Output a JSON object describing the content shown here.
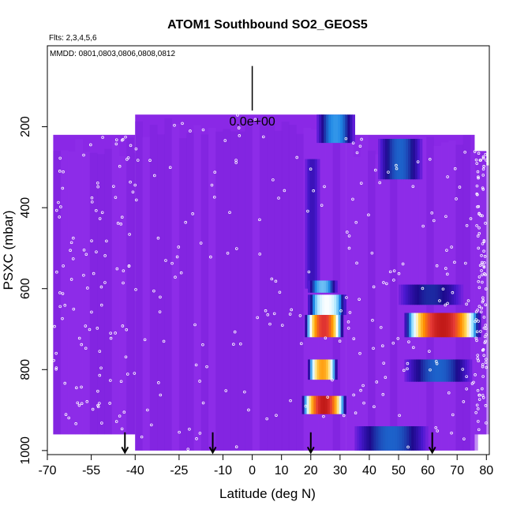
{
  "chart_data": {
    "type": "heatmap",
    "title": "ATOM1 Southbound SO2_GEOS5",
    "subtitle_flights": "Flts: 2,3,4,5,6",
    "subtitle_dates": "MMDD: 0801,0803,0806,0808,0812",
    "xlabel": "Latitude (deg N)",
    "ylabel": "PSXC (mbar)",
    "xlim": [
      -70,
      81
    ],
    "ylim": [
      1010,
      0
    ],
    "x_ticks": [
      -70,
      -55,
      -40,
      -25,
      -10,
      0,
      10,
      20,
      30,
      40,
      50,
      60,
      70,
      80
    ],
    "y_ticks": [
      200,
      400,
      600,
      800,
      1000
    ],
    "scale_key_label": "0.0e+00",
    "scale_key_pressure_range": [
      50,
      160
    ],
    "scale_key_latitude": 0,
    "background_color": "#8a28e6",
    "dark_color": "#1c0a8c",
    "colormap": [
      "#8a28e6",
      "#4a18d0",
      "#1c0a8c",
      "#1e88e5",
      "#9fe3ff",
      "#ffffff",
      "#ffd54f",
      "#ff8f00",
      "#e53935",
      "#a50000"
    ],
    "coverage": [
      {
        "lat": [
          -68,
          -40
        ],
        "p": [
          220,
          960
        ]
      },
      {
        "lat": [
          -40,
          32
        ],
        "p": [
          170,
          1000
        ]
      },
      {
        "lat": [
          32,
          76
        ],
        "p": [
          220,
          1000
        ]
      },
      {
        "lat": [
          76,
          80
        ],
        "p": [
          260,
          960
        ]
      }
    ],
    "features": [
      {
        "lat": [
          22,
          35
        ],
        "p": [
          170,
          240
        ],
        "level": 0.35
      },
      {
        "lat": [
          43,
          58
        ],
        "p": [
          230,
          330
        ],
        "level": 0.3
      },
      {
        "lat": [
          18,
          23
        ],
        "p": [
          280,
          600
        ],
        "level": 0.15
      },
      {
        "lat": [
          19,
          29
        ],
        "p": [
          580,
          610
        ],
        "level": 0.4
      },
      {
        "lat": [
          19,
          32
        ],
        "p": [
          615,
          665
        ],
        "level": 0.55
      },
      {
        "lat": [
          18,
          31
        ],
        "p": [
          665,
          720
        ],
        "level": 0.9
      },
      {
        "lat": [
          19,
          29
        ],
        "p": [
          775,
          825
        ],
        "level": 0.75
      },
      {
        "lat": [
          17,
          32
        ],
        "p": [
          865,
          910
        ],
        "level": 0.95
      },
      {
        "lat": [
          52,
          78
        ],
        "p": [
          660,
          720
        ],
        "level": 0.95
      },
      {
        "lat": [
          52,
          75
        ],
        "p": [
          775,
          830
        ],
        "level": 0.3
      },
      {
        "lat": [
          50,
          72
        ],
        "p": [
          590,
          640
        ],
        "level": 0.25
      },
      {
        "lat": [
          35,
          60
        ],
        "p": [
          940,
          1000
        ],
        "level": 0.3
      }
    ],
    "flight_markers": [
      -43.5,
      -13.5,
      20,
      61.5
    ],
    "sample_points": {
      "count": 420,
      "color": "#ffffff"
    }
  }
}
